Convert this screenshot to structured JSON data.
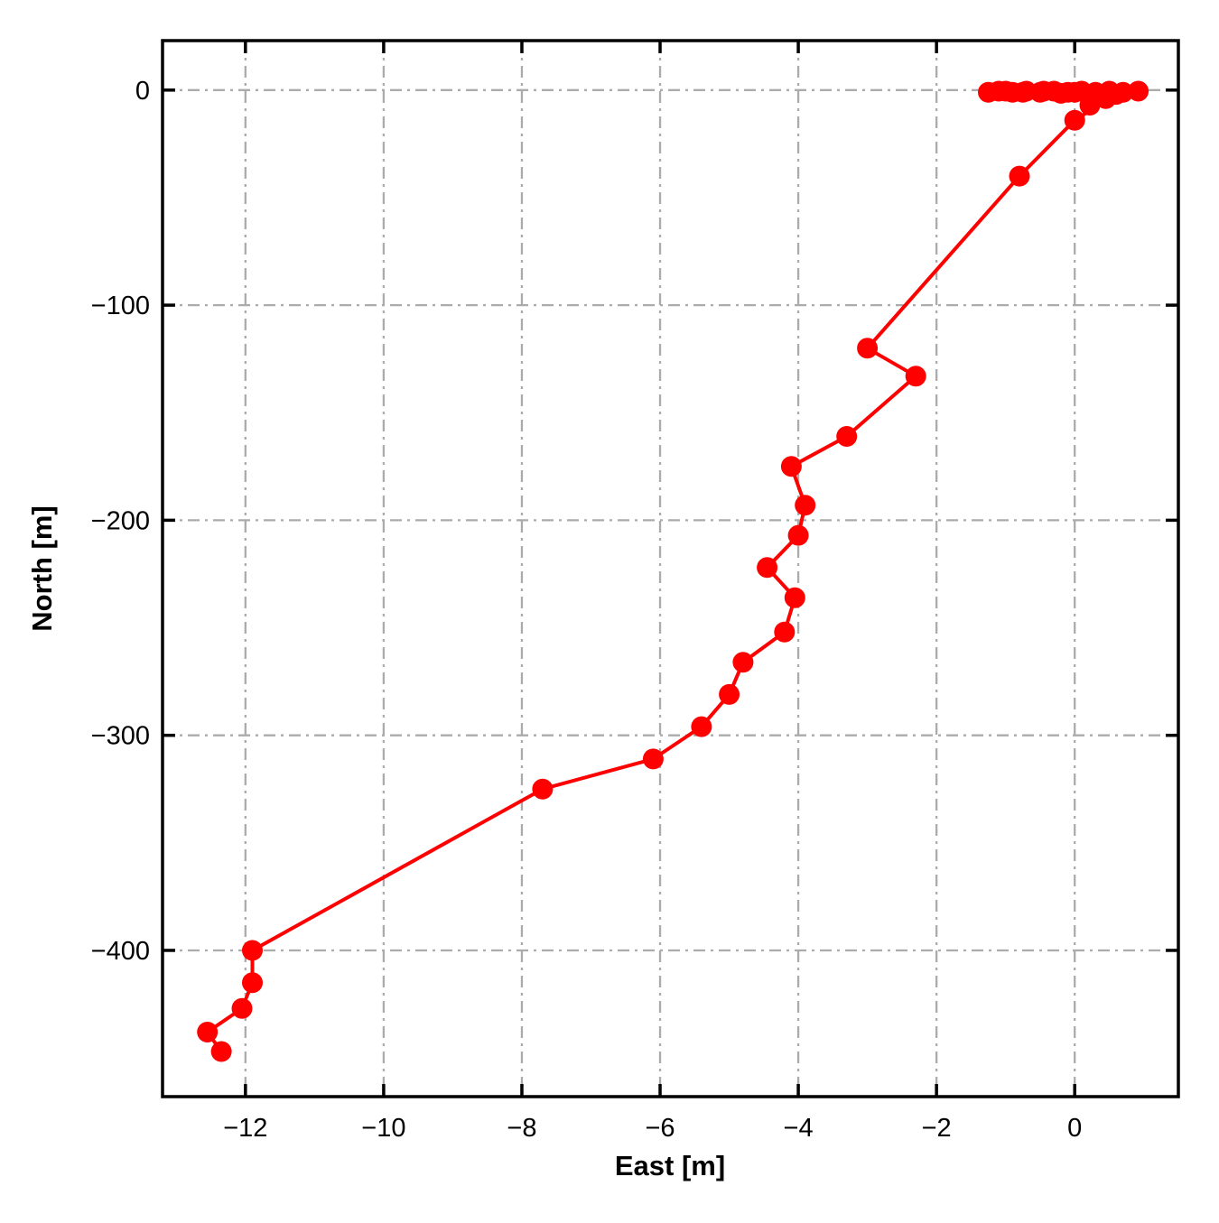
{
  "chart_data": {
    "type": "line",
    "title": "",
    "xlabel": "East [m]",
    "ylabel": "North [m]",
    "xlim": [
      -13.2,
      1.5
    ],
    "ylim": [
      -468,
      23
    ],
    "xticks": [
      -12,
      -10,
      -8,
      -6,
      -4,
      -2,
      0
    ],
    "yticks": [
      0,
      -100,
      -200,
      -300,
      -400
    ],
    "grid": true,
    "grid_style": "dash-dot",
    "grid_color": "#ababab",
    "spine_color": "#000000",
    "background_color": "#ffffff",
    "legend": false,
    "series": [
      {
        "name": "trajectory",
        "color": "#ff0000",
        "marker": "circle",
        "points": [
          [
            0.92,
            -0.5
          ],
          [
            0.7,
            -1
          ],
          [
            0.5,
            -0.5
          ],
          [
            0.3,
            -1
          ],
          [
            0.1,
            -0.5
          ],
          [
            -0.1,
            -1
          ],
          [
            -0.3,
            -0.5
          ],
          [
            -0.5,
            -1
          ],
          [
            -0.7,
            -0.5
          ],
          [
            -0.9,
            -1
          ],
          [
            -1.1,
            -0.5
          ],
          [
            -1.25,
            -1
          ],
          [
            -1.0,
            -0.5
          ],
          [
            -0.75,
            -1
          ],
          [
            -0.45,
            -0.5
          ],
          [
            -0.2,
            -1.5
          ],
          [
            0.0,
            -1
          ],
          [
            0.22,
            -7
          ],
          [
            0.45,
            -4
          ],
          [
            0.6,
            -2
          ],
          [
            0.0,
            -14
          ],
          [
            -0.8,
            -40
          ],
          [
            -3.0,
            -120
          ],
          [
            -2.3,
            -133
          ],
          [
            -3.3,
            -161
          ],
          [
            -4.1,
            -175
          ],
          [
            -3.9,
            -193
          ],
          [
            -4.0,
            -207
          ],
          [
            -4.45,
            -222
          ],
          [
            -4.05,
            -236
          ],
          [
            -4.2,
            -252
          ],
          [
            -4.8,
            -266
          ],
          [
            -5.0,
            -281
          ],
          [
            -5.4,
            -296
          ],
          [
            -6.1,
            -311
          ],
          [
            -7.7,
            -325
          ],
          [
            -11.9,
            -400
          ],
          [
            -11.9,
            -415
          ],
          [
            -12.05,
            -427
          ],
          [
            -12.55,
            -438
          ],
          [
            -12.35,
            -447
          ]
        ]
      }
    ]
  }
}
